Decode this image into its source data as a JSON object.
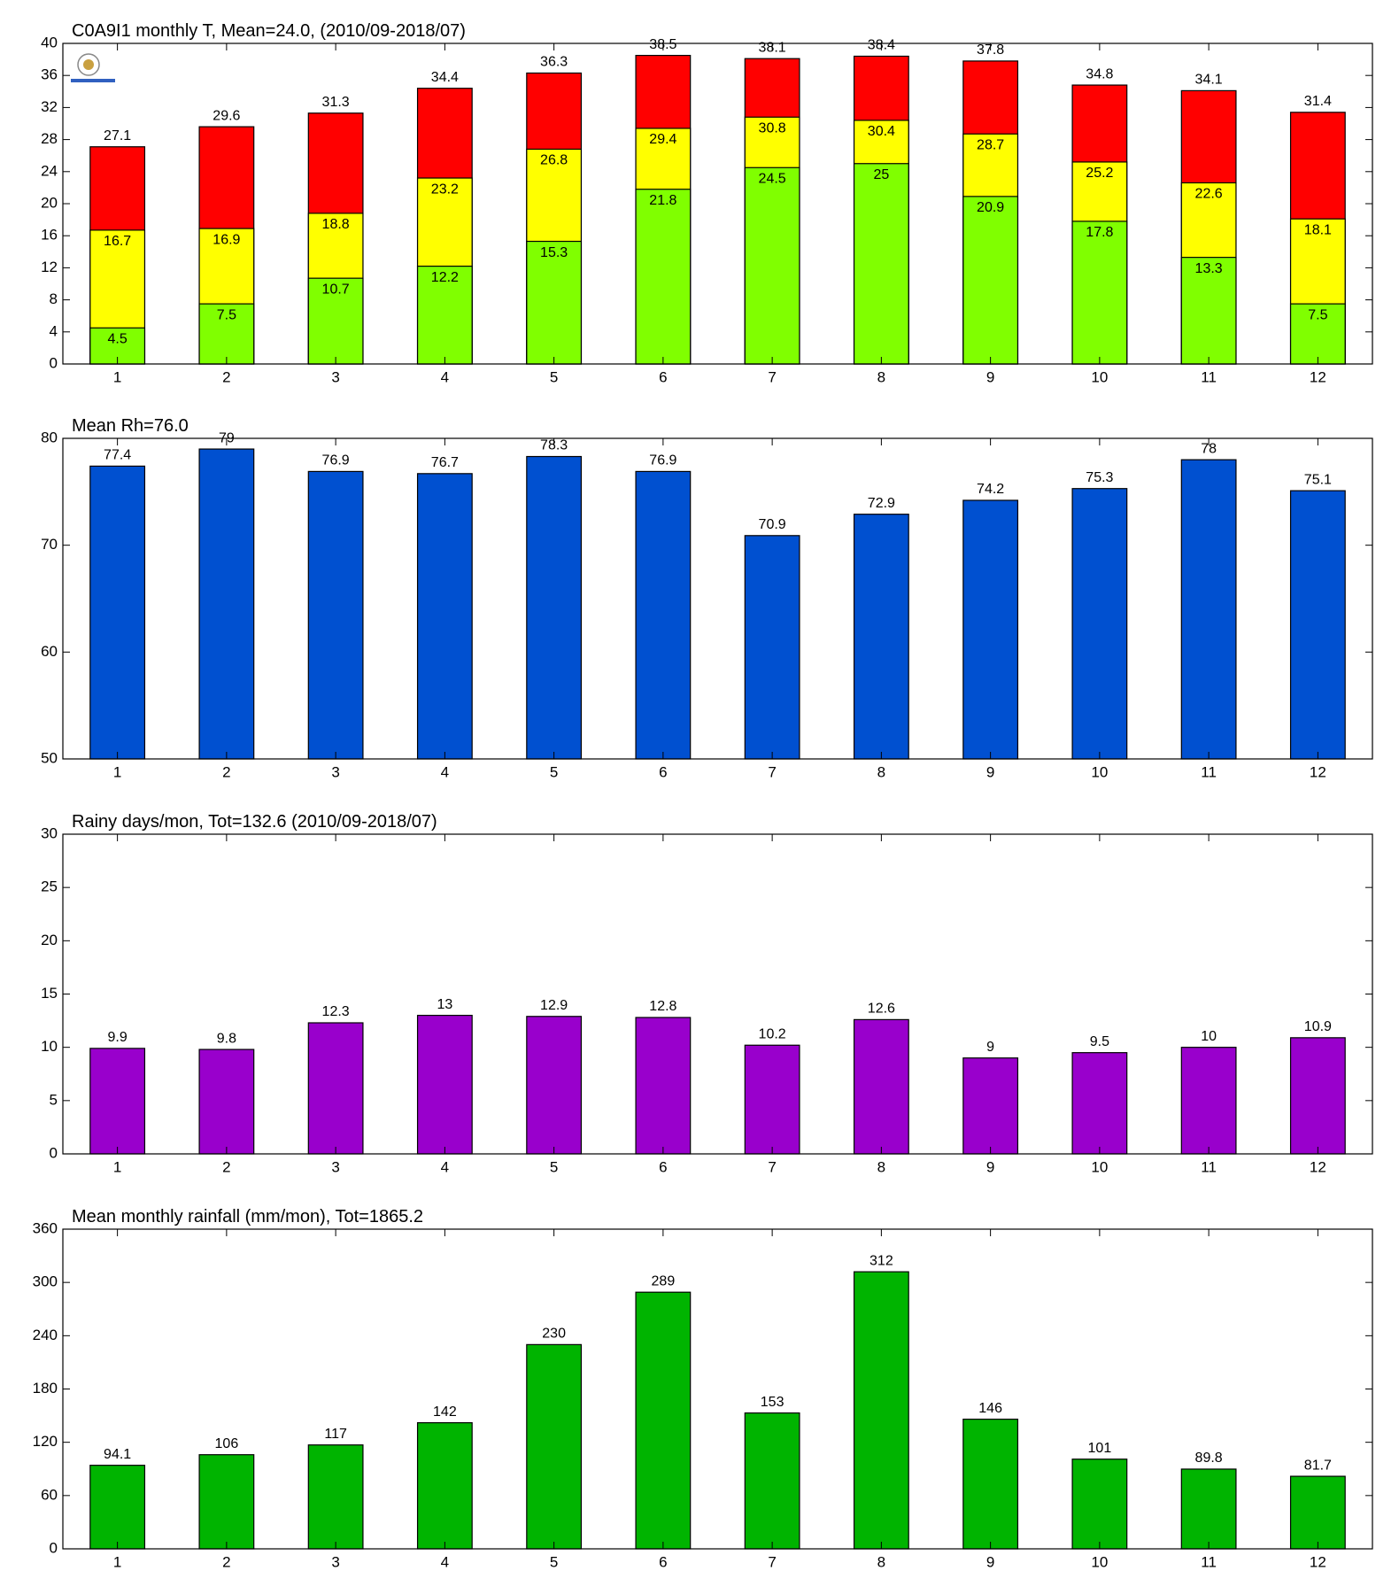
{
  "chart_data": [
    {
      "type": "bar",
      "title": "C0A9I1 monthly T, Mean=24.0, (2010/09-2018/07)",
      "categories": [
        "1",
        "2",
        "3",
        "4",
        "5",
        "6",
        "7",
        "8",
        "9",
        "10",
        "11",
        "12"
      ],
      "series": [
        {
          "color": "#ff0000",
          "values": [
            27.1,
            29.6,
            31.3,
            34.4,
            36.3,
            38.5,
            38.1,
            38.4,
            37.8,
            34.8,
            34.1,
            31.4
          ]
        },
        {
          "color": "#ffff00",
          "values": [
            16.7,
            16.9,
            18.8,
            23.2,
            26.8,
            29.4,
            30.8,
            30.4,
            28.7,
            25.2,
            22.6,
            18.1
          ]
        },
        {
          "color": "#80ff00",
          "values": [
            4.5,
            7.5,
            10.7,
            12.2,
            15.3,
            21.8,
            24.5,
            25,
            20.9,
            17.8,
            13.3,
            7.5
          ]
        }
      ],
      "ylim": [
        0,
        40
      ],
      "yticks": [
        0,
        4,
        8,
        12,
        16,
        20,
        24,
        28,
        32,
        36,
        40
      ]
    },
    {
      "type": "bar",
      "title": "Mean Rh=76.0",
      "categories": [
        "1",
        "2",
        "3",
        "4",
        "5",
        "6",
        "7",
        "8",
        "9",
        "10",
        "11",
        "12"
      ],
      "series": [
        {
          "color": "#0050d0",
          "values": [
            77.4,
            79,
            76.9,
            76.7,
            78.3,
            76.9,
            70.9,
            72.9,
            74.2,
            75.3,
            78,
            75.1
          ]
        }
      ],
      "ylim": [
        50,
        80
      ],
      "yticks": [
        50,
        60,
        70,
        80
      ]
    },
    {
      "type": "bar",
      "title": "Rainy days/mon, Tot=132.6 (2010/09-2018/07)",
      "categories": [
        "1",
        "2",
        "3",
        "4",
        "5",
        "6",
        "7",
        "8",
        "9",
        "10",
        "11",
        "12"
      ],
      "series": [
        {
          "color": "#9900cc",
          "values": [
            9.9,
            9.8,
            12.3,
            13,
            12.9,
            12.8,
            10.2,
            12.6,
            9,
            9.5,
            10,
            10.9
          ]
        }
      ],
      "ylim": [
        0,
        30
      ],
      "yticks": [
        0,
        5,
        10,
        15,
        20,
        25,
        30
      ]
    },
    {
      "type": "bar",
      "title": "Mean monthly rainfall (mm/mon), Tot=1865.2",
      "categories": [
        "1",
        "2",
        "3",
        "4",
        "5",
        "6",
        "7",
        "8",
        "9",
        "10",
        "11",
        "12"
      ],
      "series": [
        {
          "color": "#00b400",
          "values": [
            94.1,
            106,
            117,
            142,
            230,
            289,
            153,
            312,
            146,
            101,
            89.8,
            81.7
          ]
        }
      ],
      "ylim": [
        0,
        360
      ],
      "yticks": [
        0,
        60,
        120,
        180,
        240,
        300,
        360
      ]
    }
  ]
}
